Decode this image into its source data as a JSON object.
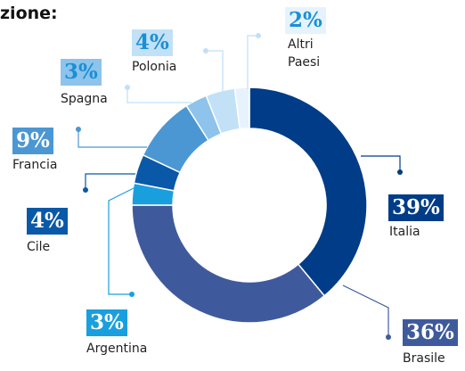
{
  "chart_data": {
    "type": "pie",
    "donut": true,
    "title": "zione:",
    "categories": [
      "Italia",
      "Brasile",
      "Argentina",
      "Cile",
      "Francia",
      "Spagna",
      "Polonia",
      "Altri Paesi"
    ],
    "values": [
      39,
      36,
      3,
      4,
      9,
      3,
      4,
      2
    ],
    "value_labels": [
      "39%",
      "36%",
      "3%",
      "4%",
      "9%",
      "3%",
      "4%",
      "2%"
    ],
    "colors": [
      "#003c87",
      "#3f5a9c",
      "#1a9fde",
      "#0a58a8",
      "#4b97d4",
      "#8ec3eb",
      "#c2e1f7",
      "#e6f3fc"
    ]
  }
}
